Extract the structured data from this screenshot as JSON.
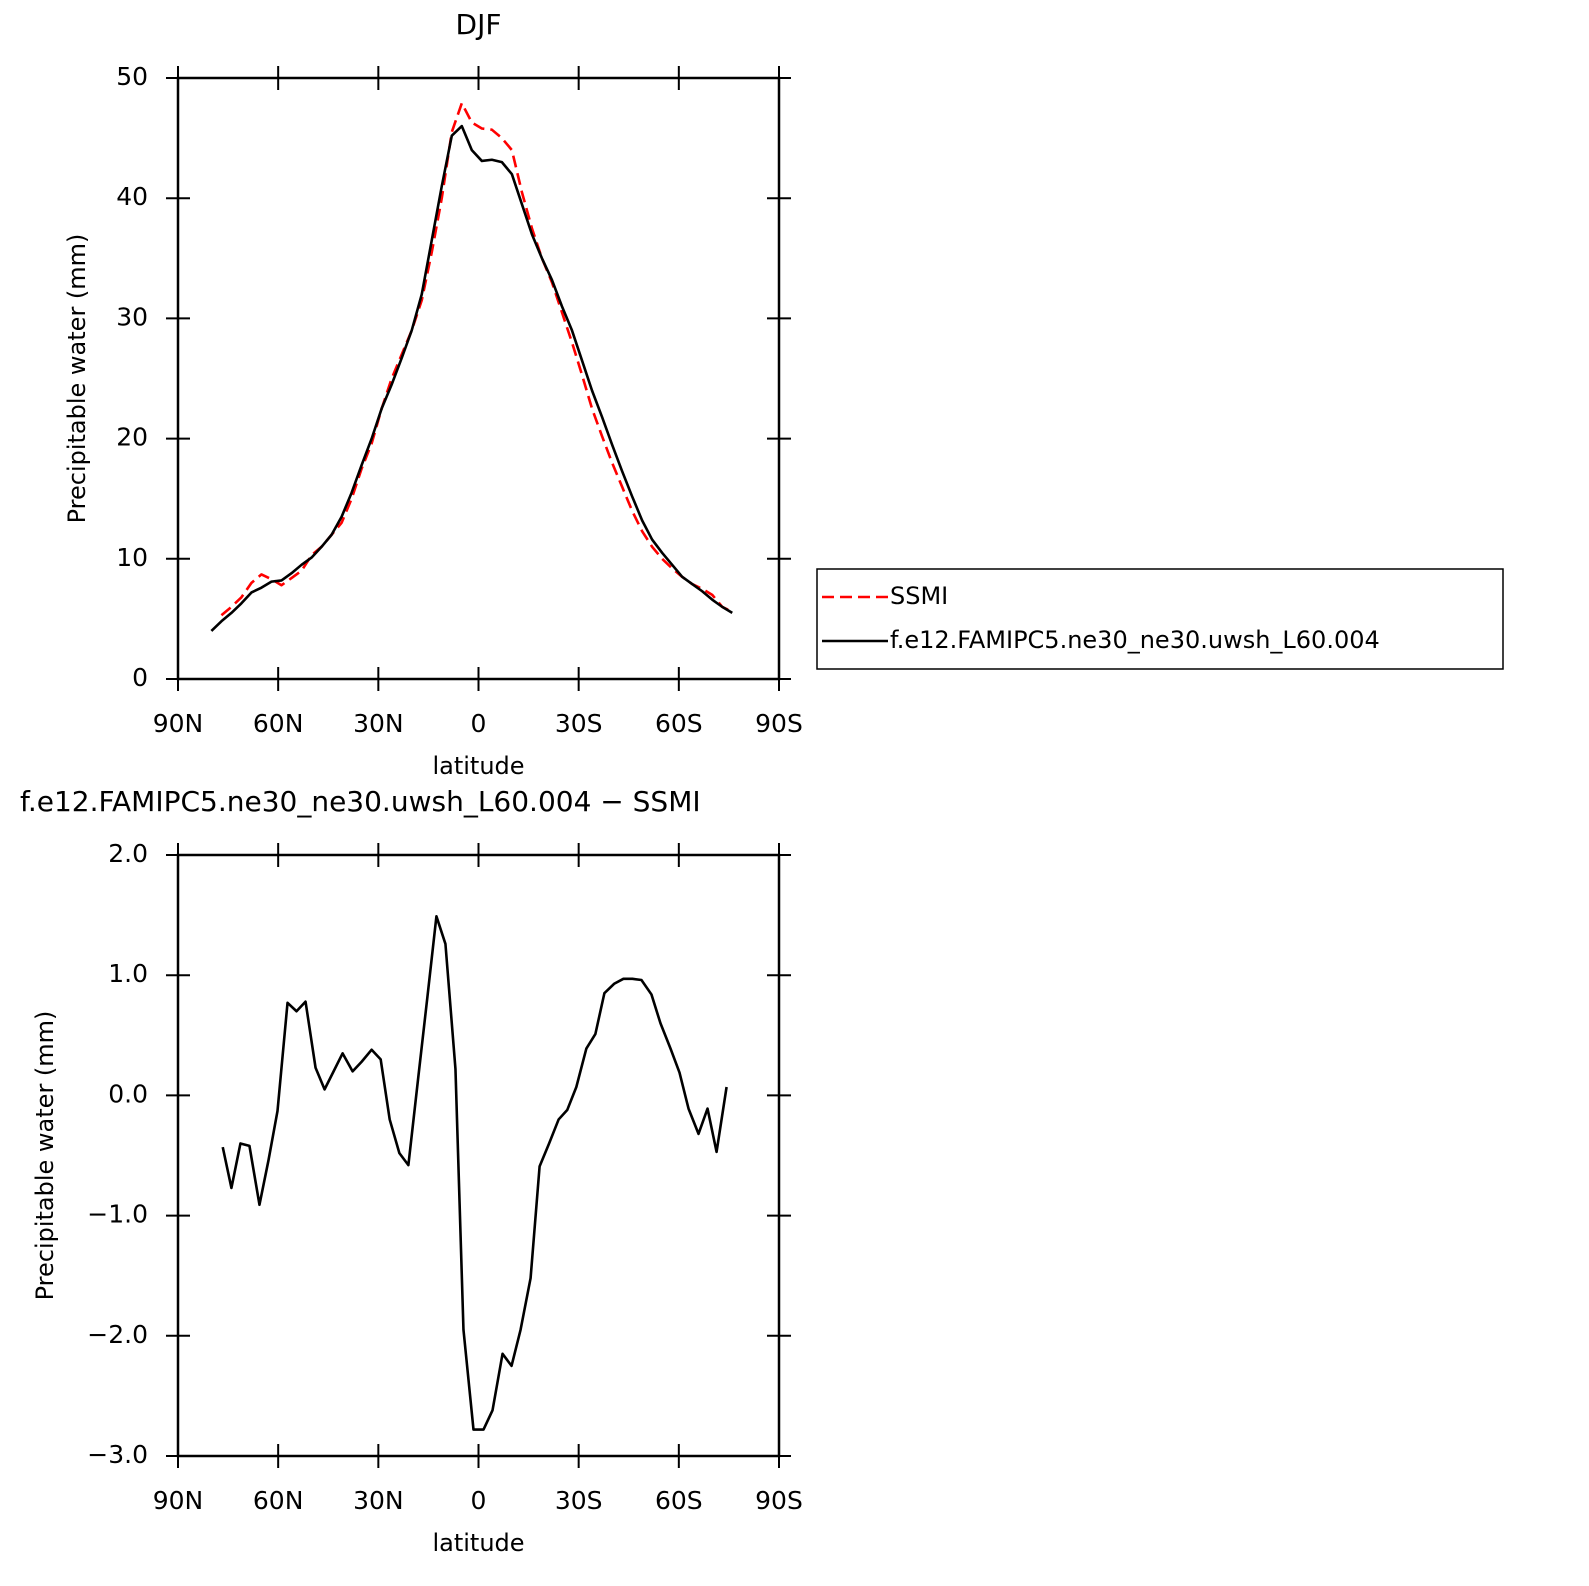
{
  "chart_data": [
    {
      "type": "line",
      "title": "DJF",
      "xlabel": "latitude",
      "ylabel": "Precipitable water (mm)",
      "xlim": [
        90,
        -90
      ],
      "xticks": [
        {
          "value": 90,
          "label": "90N"
        },
        {
          "value": 60,
          "label": "60N"
        },
        {
          "value": 30,
          "label": "30N"
        },
        0,
        {
          "value": -30,
          "label": "30S"
        },
        {
          "value": -60,
          "label": "60S"
        },
        {
          "value": -90,
          "label": "90S"
        }
      ],
      "ylim": [
        0,
        50
      ],
      "yticks": [
        0,
        10,
        20,
        30,
        40,
        50
      ],
      "legend": "right",
      "x": [
        80,
        77,
        74,
        71,
        68,
        65,
        62,
        59,
        56,
        53,
        50,
        47,
        44,
        41,
        38,
        35,
        32,
        29,
        26,
        23,
        20,
        17,
        14,
        11,
        8,
        5,
        2,
        -1,
        -4,
        -7,
        -10,
        -13,
        -16,
        -19,
        -22,
        -25,
        -28,
        -31,
        -34,
        -37,
        -40,
        -43,
        -46,
        -49,
        -52,
        -55,
        -58,
        -61,
        -64,
        -67,
        -70,
        -73,
        -76
      ],
      "series": [
        {
          "name": "SSMI",
          "color": "#ff0000",
          "linestyle": "dashed",
          "values": [
            null,
            5.3,
            6.0,
            6.8,
            8.0,
            8.7,
            8.3,
            7.8,
            8.4,
            9.0,
            10.3,
            11.0,
            12.0,
            13.0,
            15.0,
            17.5,
            19.6,
            22.5,
            25.0,
            27.0,
            29.0,
            31.5,
            35.5,
            40.0,
            45.5,
            47.9,
            46.3,
            45.8,
            45.7,
            45.0,
            44.0,
            40.5,
            37.5,
            35.0,
            33.0,
            30.5,
            28.0,
            25.3,
            22.5,
            20.2,
            18.0,
            16.0,
            14.0,
            12.3,
            11.0,
            10.0,
            9.2,
            8.5,
            7.9,
            7.5,
            7.0,
            6.0,
            5.6
          ]
        },
        {
          "name": "f.e12.FAMIPC5.ne30_ne30.uwsh_L60.004",
          "color": "#000000",
          "linestyle": "solid",
          "values": [
            4.0,
            4.8,
            5.5,
            6.3,
            7.2,
            7.6,
            8.1,
            8.2,
            8.8,
            9.5,
            10.1,
            11.0,
            12.0,
            13.5,
            15.5,
            17.8,
            20.0,
            22.5,
            24.5,
            26.7,
            29.0,
            32.0,
            36.5,
            41.0,
            45.2,
            46.0,
            44.0,
            43.1,
            43.2,
            43.0,
            42.0,
            39.5,
            37.0,
            35.0,
            33.2,
            31.0,
            29.0,
            26.5,
            24.0,
            21.8,
            19.5,
            17.3,
            15.2,
            13.2,
            11.6,
            10.5,
            9.5,
            8.5,
            7.9,
            7.3,
            6.6,
            6.0,
            5.5
          ]
        }
      ]
    },
    {
      "type": "line",
      "title": "f.e12.FAMIPC5.ne30_ne30.uwsh_L60.004 − SSMI",
      "xlabel": "latitude",
      "ylabel": "Precipitable water (mm)",
      "xlim": [
        90,
        -90
      ],
      "xticks": [
        {
          "value": 90,
          "label": "90N"
        },
        {
          "value": 60,
          "label": "60N"
        },
        {
          "value": 30,
          "label": "30N"
        },
        0,
        {
          "value": -30,
          "label": "30S"
        },
        {
          "value": -60,
          "label": "60S"
        },
        {
          "value": -90,
          "label": "90S"
        }
      ],
      "ylim": [
        -3,
        2
      ],
      "yticks": [
        {
          "value": 2,
          "label": "2.0"
        },
        {
          "value": 1,
          "label": "1.0"
        },
        {
          "value": 0,
          "label": "0.0"
        },
        {
          "value": -1,
          "label": "−1.0"
        },
        {
          "value": -2,
          "label": "−2.0"
        },
        {
          "value": -3,
          "label": "−3.0"
        }
      ],
      "color": "#000000",
      "x": [
        76.6,
        74,
        71.3,
        68.6,
        65.6,
        62.9,
        60.2,
        57.2,
        54.5,
        51.8,
        48.8,
        46.1,
        43.4,
        40.7,
        37.7,
        35,
        32,
        29.3,
        26.6,
        23.7,
        21,
        18,
        15.3,
        12.6,
        9.9,
        6.9,
        4.5,
        1.5,
        -1.5,
        -4.2,
        -7.2,
        -9.9,
        -12.6,
        -15.6,
        -18.3,
        -21,
        -24,
        -26.6,
        -29.3,
        -32.3,
        -35,
        -37.7,
        -40.7,
        -43.4,
        -46.1,
        -48.8,
        -51.8,
        -54.5,
        -57.5,
        -60.2,
        -62.9,
        -65.9,
        -68.6,
        -71.3,
        -74.3
      ],
      "values": [
        -0.43,
        -0.77,
        -0.4,
        -0.42,
        -0.91,
        -0.54,
        -0.13,
        0.77,
        0.7,
        0.78,
        0.23,
        0.05,
        0.2,
        0.35,
        0.2,
        0.28,
        0.38,
        0.3,
        -0.2,
        -0.48,
        -0.58,
        0.16,
        0.82,
        1.49,
        1.26,
        0.22,
        -1.95,
        -2.78,
        -2.78,
        -2.62,
        -2.15,
        -2.25,
        -1.95,
        -1.52,
        -0.59,
        -0.41,
        -0.2,
        -0.12,
        0.07,
        0.39,
        0.51,
        0.85,
        0.93,
        0.97,
        0.97,
        0.96,
        0.84,
        0.6,
        0.39,
        0.19,
        -0.11,
        -0.32,
        -0.11,
        -0.47,
        0.07
      ]
    }
  ]
}
